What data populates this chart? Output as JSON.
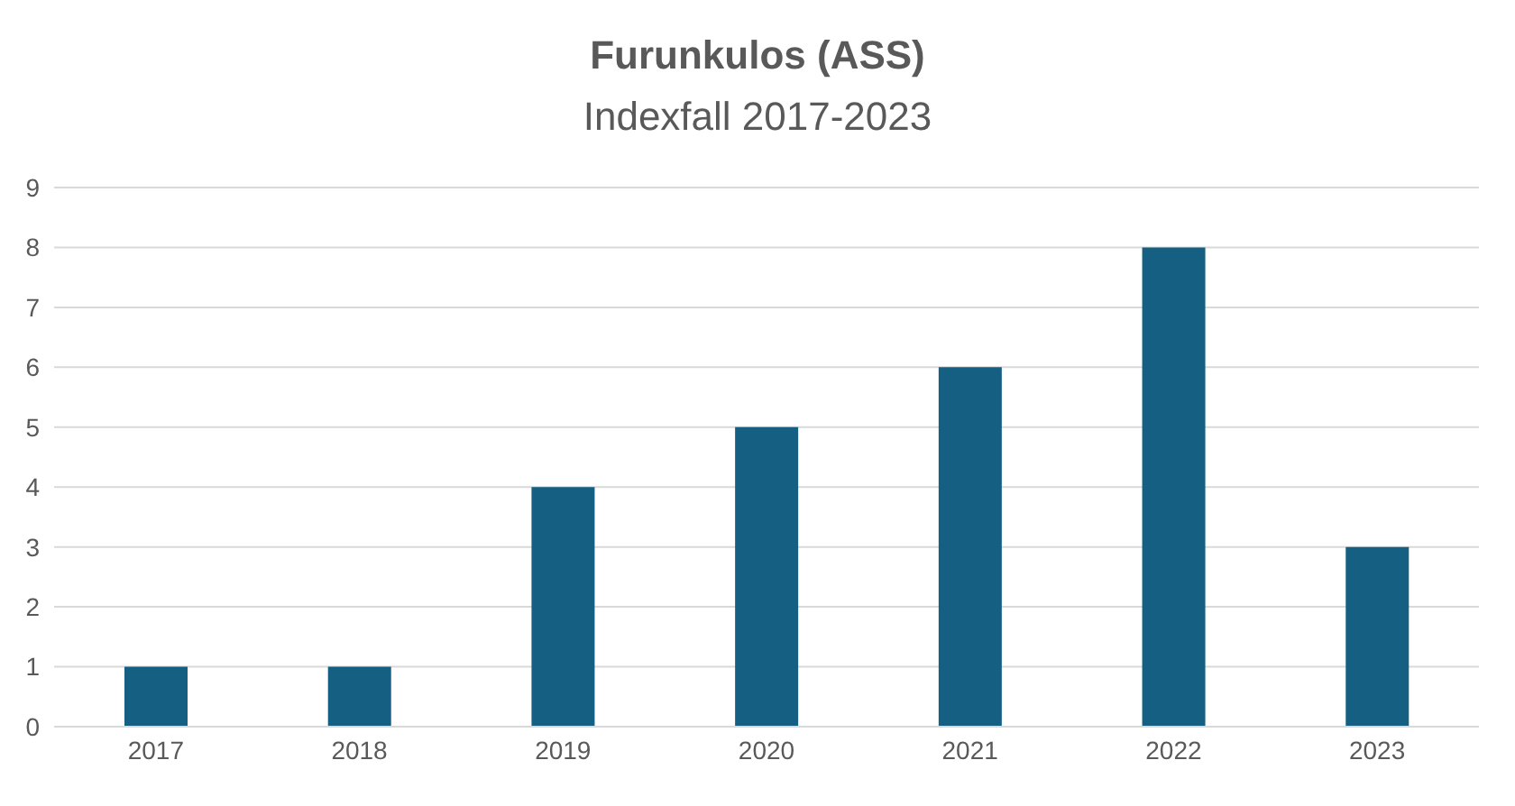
{
  "chart_data": {
    "type": "bar",
    "title": "Furunkulos (ASS)",
    "subtitle": "Indexfall 2017-2023",
    "categories": [
      "2017",
      "2018",
      "2019",
      "2020",
      "2021",
      "2022",
      "2023"
    ],
    "values": [
      1,
      1,
      4,
      5,
      6,
      8,
      3
    ],
    "color": "#145f82",
    "ylim": [
      0,
      9
    ],
    "yticks": [
      0,
      1,
      2,
      3,
      4,
      5,
      6,
      7,
      8,
      9
    ],
    "grid": "y",
    "legend": false
  }
}
